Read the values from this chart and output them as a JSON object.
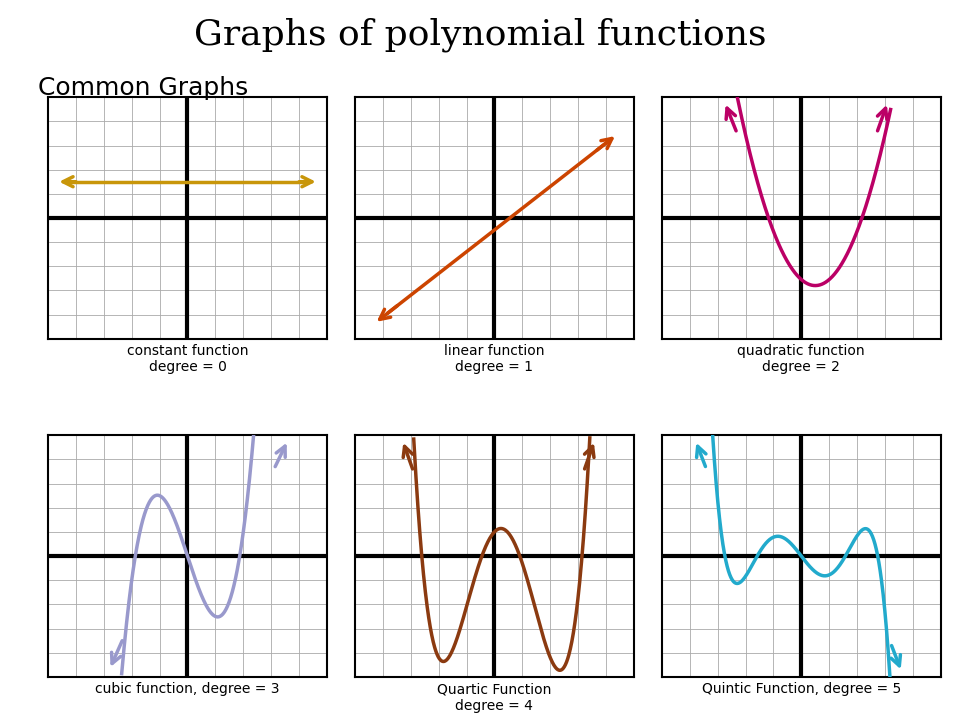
{
  "title": "Graphs of polynomial functions",
  "subtitle": "Common Graphs",
  "title_fontsize": 26,
  "subtitle_fontsize": 18,
  "background_color": "#ffffff",
  "grid_color": "#bbbbbb",
  "axis_color": "#000000",
  "graphs": [
    {
      "label_line1": "constant function",
      "label_line2": "degree = 0",
      "color": "#c8960a",
      "type": "constant",
      "label_align": "left"
    },
    {
      "label_line1": "linear function",
      "label_line2": "degree = 1",
      "color": "#cc4400",
      "type": "linear",
      "label_align": "center"
    },
    {
      "label_line1": "quadratic function",
      "label_line2": "degree = 2",
      "color": "#bb0066",
      "type": "quadratic",
      "label_align": "center"
    },
    {
      "label_line1": "cubic function, degree = 3",
      "label_line2": "",
      "color": "#9999cc",
      "type": "cubic",
      "label_align": "left"
    },
    {
      "label_line1": "Quartic Function",
      "label_line2": "degree = 4",
      "color": "#8b3a10",
      "type": "quartic",
      "label_align": "center"
    },
    {
      "label_line1": "Quintic Function, degree = 5",
      "label_line2": "",
      "color": "#22aacc",
      "type": "quintic",
      "label_align": "center"
    }
  ]
}
